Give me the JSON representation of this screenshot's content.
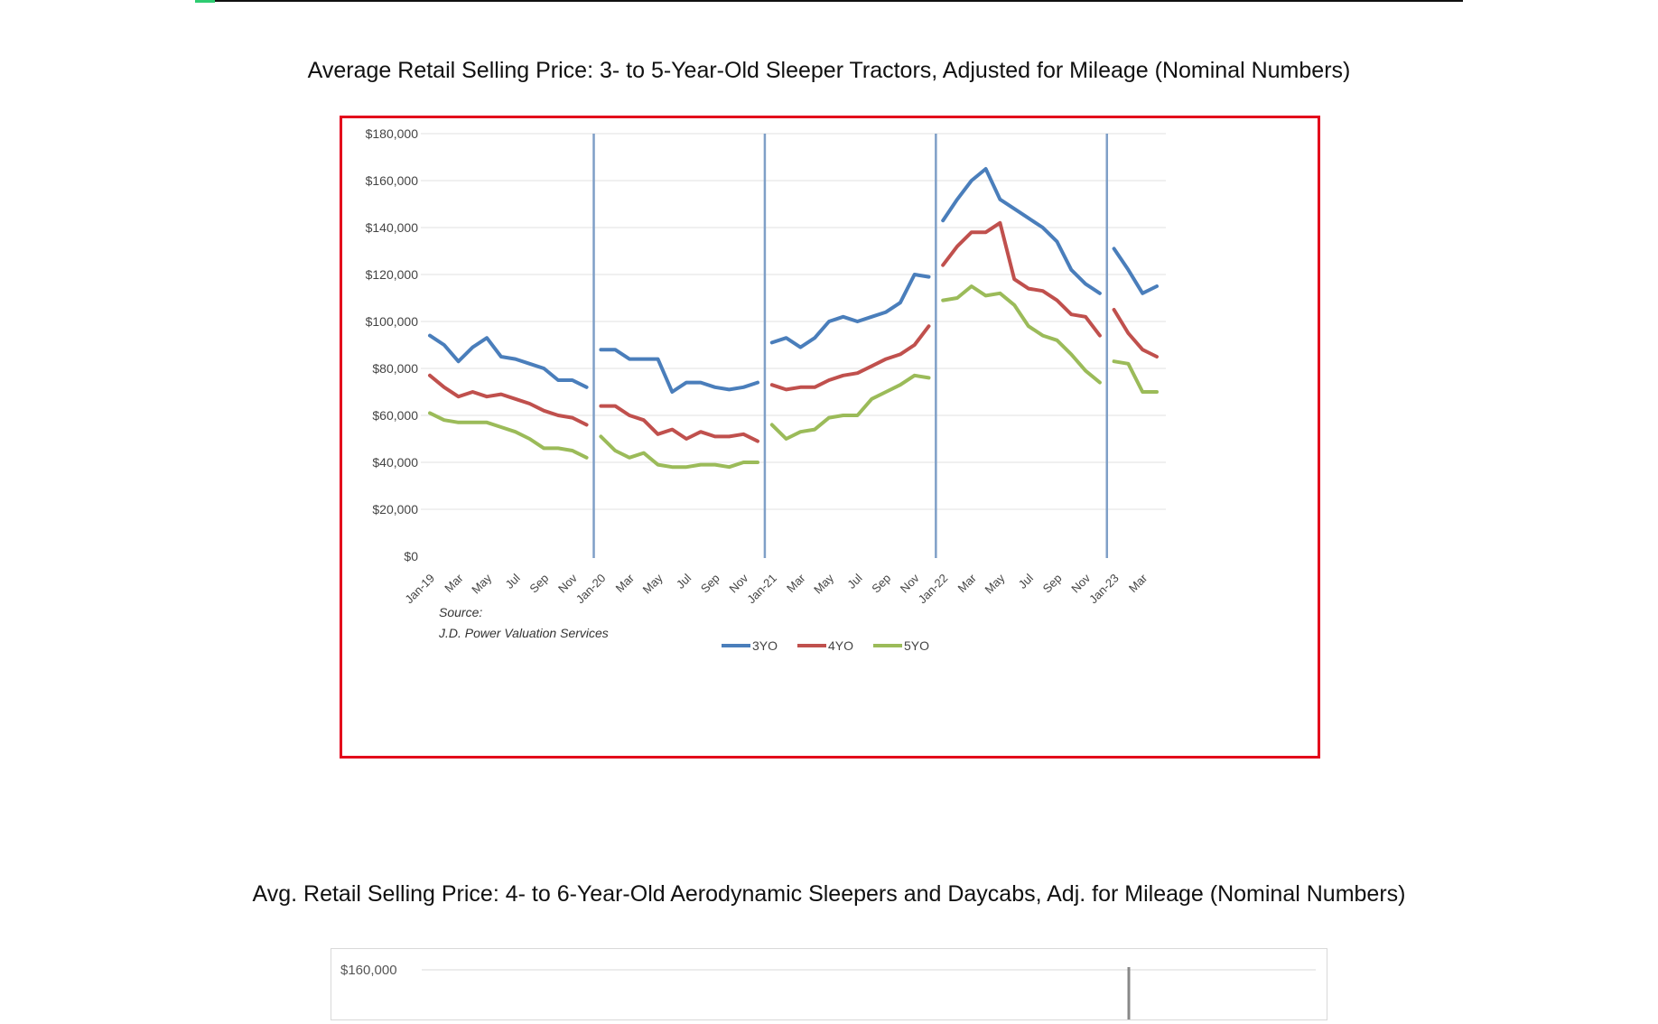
{
  "page": {
    "accent_color": "#2ecc71",
    "frame_color": "#e3001b"
  },
  "chart1": {
    "title": "Average Retail Selling Price: 3- to 5-Year-Old Sleeper Tractors, Adjusted for Mileage (Nominal Numbers)",
    "source_line1": "Source:",
    "source_line2": "J.D. Power Valuation Services"
  },
  "chart2": {
    "title": "Avg. Retail Selling Price: 4- to 6-Year-Old Aerodynamic Sleepers and Daycabs, Adj. for Mileage (Nominal Numbers)",
    "y_tick_top": "$160,000"
  },
  "chart_data": [
    {
      "type": "line",
      "title": "Average Retail Selling Price: 3- to 5-Year-Old Sleeper Tractors, Adjusted for Mileage (Nominal Numbers)",
      "xlabel": "",
      "ylabel": "",
      "ylim": [
        0,
        180000
      ],
      "y_ticks": [
        "$0",
        "$20,000",
        "$40,000",
        "$60,000",
        "$80,000",
        "$100,000",
        "$120,000",
        "$140,000",
        "$160,000",
        "$180,000"
      ],
      "y_tick_values": [
        0,
        20000,
        40000,
        60000,
        80000,
        100000,
        120000,
        140000,
        160000,
        180000
      ],
      "x_tick_labels": [
        "Jan-19",
        "Mar",
        "May",
        "Jul",
        "Sep",
        "Nov",
        "Jan-20",
        "Mar",
        "May",
        "Jul",
        "Sep",
        "Nov",
        "Jan-21",
        "Mar",
        "May",
        "Jul",
        "Sep",
        "Nov",
        "Jan-22",
        "Mar",
        "May",
        "Jul",
        "Sep",
        "Nov",
        "Jan-23",
        "Mar"
      ],
      "year_separators": [
        "Jan-20",
        "Jan-21",
        "Jan-22",
        "Jan-23"
      ],
      "grid": true,
      "legend_position": "bottom",
      "colors": {
        "3YO": "#4a7ebb",
        "4YO": "#c0504d",
        "5YO": "#9bbb59",
        "separator": "#7f9fc7"
      },
      "x": [
        "2019-01",
        "2019-02",
        "2019-03",
        "2019-04",
        "2019-05",
        "2019-06",
        "2019-07",
        "2019-08",
        "2019-09",
        "2019-10",
        "2019-11",
        "2019-12",
        "2020-01",
        "2020-02",
        "2020-03",
        "2020-04",
        "2020-05",
        "2020-06",
        "2020-07",
        "2020-08",
        "2020-09",
        "2020-10",
        "2020-11",
        "2020-12",
        "2021-01",
        "2021-02",
        "2021-03",
        "2021-04",
        "2021-05",
        "2021-06",
        "2021-07",
        "2021-08",
        "2021-09",
        "2021-10",
        "2021-11",
        "2021-12",
        "2022-01",
        "2022-02",
        "2022-03",
        "2022-04",
        "2022-05",
        "2022-06",
        "2022-07",
        "2022-08",
        "2022-09",
        "2022-10",
        "2022-11",
        "2022-12",
        "2023-01",
        "2023-02",
        "2023-03",
        "2023-04"
      ],
      "series": [
        {
          "name": "3YO",
          "values": [
            94000,
            90000,
            83000,
            89000,
            93000,
            85000,
            84000,
            82000,
            80000,
            75000,
            75000,
            72000,
            88000,
            88000,
            84000,
            84000,
            84000,
            70000,
            74000,
            74000,
            72000,
            71000,
            72000,
            74000,
            91000,
            93000,
            89000,
            93000,
            100000,
            102000,
            100000,
            102000,
            104000,
            108000,
            120000,
            119000,
            143000,
            152000,
            160000,
            165000,
            152000,
            148000,
            144000,
            140000,
            134000,
            122000,
            116000,
            112000,
            131000,
            122000,
            112000,
            115000
          ]
        },
        {
          "name": "4YO",
          "values": [
            77000,
            72000,
            68000,
            70000,
            68000,
            69000,
            67000,
            65000,
            62000,
            60000,
            59000,
            56000,
            64000,
            64000,
            60000,
            58000,
            52000,
            54000,
            50000,
            53000,
            51000,
            51000,
            52000,
            49000,
            73000,
            71000,
            72000,
            72000,
            75000,
            77000,
            78000,
            81000,
            84000,
            86000,
            90000,
            98000,
            124000,
            132000,
            138000,
            138000,
            142000,
            118000,
            114000,
            113000,
            109000,
            103000,
            102000,
            94000,
            105000,
            95000,
            88000,
            85000
          ]
        },
        {
          "name": "5YO",
          "values": [
            61000,
            58000,
            57000,
            57000,
            57000,
            55000,
            53000,
            50000,
            46000,
            46000,
            45000,
            42000,
            51000,
            45000,
            42000,
            44000,
            39000,
            38000,
            38000,
            39000,
            39000,
            38000,
            40000,
            40000,
            56000,
            50000,
            53000,
            54000,
            59000,
            60000,
            60000,
            67000,
            70000,
            73000,
            77000,
            76000,
            109000,
            110000,
            115000,
            111000,
            112000,
            107000,
            98000,
            94000,
            92000,
            86000,
            79000,
            74000,
            83000,
            82000,
            70000,
            70000
          ]
        }
      ]
    },
    {
      "type": "line",
      "title": "Avg. Retail Selling Price: 4- to 6-Year-Old Aerodynamic Sleepers and Daycabs, Adj. for Mileage (Nominal Numbers)",
      "y_ticks": [
        "$160,000"
      ],
      "series": []
    }
  ]
}
